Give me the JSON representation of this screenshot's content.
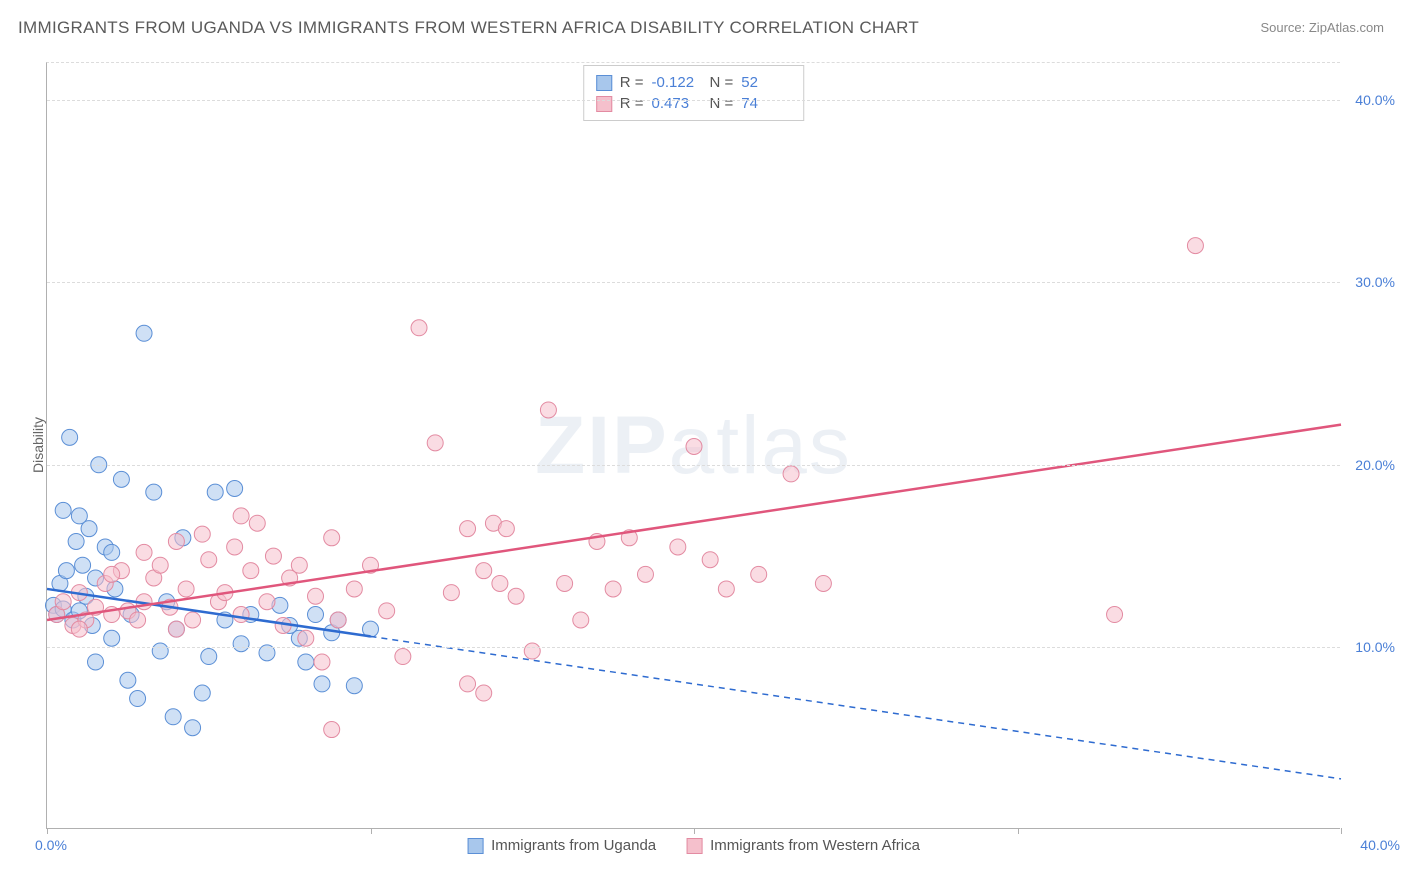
{
  "title": "IMMIGRANTS FROM UGANDA VS IMMIGRANTS FROM WESTERN AFRICA DISABILITY CORRELATION CHART",
  "source": "Source: ZipAtlas.com",
  "ylabel": "Disability",
  "watermark_bold": "ZIP",
  "watermark_rest": "atlas",
  "chart": {
    "type": "scatter",
    "xlim": [
      0,
      40
    ],
    "ylim": [
      0,
      42
    ],
    "x_axis_min_label": "0.0%",
    "x_axis_max_label": "40.0%",
    "y_ticks": [
      10,
      20,
      30,
      40
    ],
    "y_tick_labels": [
      "10.0%",
      "20.0%",
      "30.0%",
      "40.0%"
    ],
    "x_tick_positions": [
      0,
      10,
      20,
      30,
      40
    ],
    "grid_color": "#dcdcdc",
    "background_color": "#ffffff",
    "axis_label_color": "#4a7fd6",
    "marker_radius": 8,
    "marker_opacity": 0.55,
    "series": [
      {
        "name": "Immigrants from Uganda",
        "color_fill": "#a8c7ec",
        "color_stroke": "#5b8fd6",
        "R": "-0.122",
        "N": "52",
        "trend": {
          "x1": 0,
          "y1": 13.2,
          "x2": 10,
          "y2": 10.6,
          "color": "#2e6bd0",
          "width": 2.5,
          "dash_ext_x2": 40,
          "dash_ext_y2": 2.8
        },
        "points": [
          [
            0.2,
            12.3
          ],
          [
            0.3,
            11.8
          ],
          [
            0.4,
            13.5
          ],
          [
            0.5,
            12.1
          ],
          [
            0.6,
            14.2
          ],
          [
            0.7,
            21.5
          ],
          [
            0.8,
            11.5
          ],
          [
            0.9,
            15.8
          ],
          [
            1.0,
            17.2
          ],
          [
            1.1,
            14.5
          ],
          [
            1.2,
            12.8
          ],
          [
            1.3,
            16.5
          ],
          [
            1.4,
            11.2
          ],
          [
            1.5,
            9.2
          ],
          [
            1.6,
            20.0
          ],
          [
            1.8,
            15.5
          ],
          [
            2.0,
            10.5
          ],
          [
            2.1,
            13.2
          ],
          [
            2.3,
            19.2
          ],
          [
            2.5,
            8.2
          ],
          [
            2.6,
            11.8
          ],
          [
            2.8,
            7.2
          ],
          [
            3.0,
            27.2
          ],
          [
            3.3,
            18.5
          ],
          [
            3.5,
            9.8
          ],
          [
            3.7,
            12.5
          ],
          [
            3.9,
            6.2
          ],
          [
            4.0,
            11.0
          ],
          [
            4.2,
            16.0
          ],
          [
            4.5,
            5.6
          ],
          [
            4.8,
            7.5
          ],
          [
            5.0,
            9.5
          ],
          [
            5.2,
            18.5
          ],
          [
            5.5,
            11.5
          ],
          [
            5.8,
            18.7
          ],
          [
            6.0,
            10.2
          ],
          [
            6.3,
            11.8
          ],
          [
            6.8,
            9.7
          ],
          [
            7.2,
            12.3
          ],
          [
            7.5,
            11.2
          ],
          [
            7.8,
            10.5
          ],
          [
            8.0,
            9.2
          ],
          [
            8.3,
            11.8
          ],
          [
            8.5,
            8.0
          ],
          [
            8.8,
            10.8
          ],
          [
            9.0,
            11.5
          ],
          [
            9.5,
            7.9
          ],
          [
            10.0,
            11.0
          ],
          [
            0.5,
            17.5
          ],
          [
            1.0,
            12.0
          ],
          [
            1.5,
            13.8
          ],
          [
            2.0,
            15.2
          ]
        ]
      },
      {
        "name": "Immigrants from Western Africa",
        "color_fill": "#f5c0cc",
        "color_stroke": "#e38ba2",
        "R": "0.473",
        "N": "74",
        "trend": {
          "x1": 0,
          "y1": 11.5,
          "x2": 40,
          "y2": 22.2,
          "color": "#e0567c",
          "width": 2.5
        },
        "points": [
          [
            0.3,
            11.8
          ],
          [
            0.5,
            12.5
          ],
          [
            0.8,
            11.2
          ],
          [
            1.0,
            13.0
          ],
          [
            1.2,
            11.5
          ],
          [
            1.5,
            12.2
          ],
          [
            1.8,
            13.5
          ],
          [
            2.0,
            11.8
          ],
          [
            2.3,
            14.2
          ],
          [
            2.5,
            12.0
          ],
          [
            2.8,
            11.5
          ],
          [
            3.0,
            15.2
          ],
          [
            3.3,
            13.8
          ],
          [
            3.5,
            14.5
          ],
          [
            3.8,
            12.2
          ],
          [
            4.0,
            15.8
          ],
          [
            4.3,
            13.2
          ],
          [
            4.5,
            11.5
          ],
          [
            4.8,
            16.2
          ],
          [
            5.0,
            14.8
          ],
          [
            5.3,
            12.5
          ],
          [
            5.5,
            13.0
          ],
          [
            5.8,
            15.5
          ],
          [
            6.0,
            11.8
          ],
          [
            6.3,
            14.2
          ],
          [
            6.5,
            16.8
          ],
          [
            6.8,
            12.5
          ],
          [
            7.0,
            15.0
          ],
          [
            7.3,
            11.2
          ],
          [
            7.5,
            13.8
          ],
          [
            7.8,
            14.5
          ],
          [
            8.0,
            10.5
          ],
          [
            8.3,
            12.8
          ],
          [
            8.5,
            9.2
          ],
          [
            8.8,
            16.0
          ],
          [
            9.0,
            11.5
          ],
          [
            9.5,
            13.2
          ],
          [
            10.0,
            14.5
          ],
          [
            10.5,
            12.0
          ],
          [
            11.0,
            9.5
          ],
          [
            11.5,
            27.5
          ],
          [
            12.0,
            21.2
          ],
          [
            12.5,
            13.0
          ],
          [
            13.0,
            16.5
          ],
          [
            13.5,
            14.2
          ],
          [
            13.8,
            16.8
          ],
          [
            13.0,
            8.0
          ],
          [
            13.5,
            7.5
          ],
          [
            14.0,
            13.5
          ],
          [
            14.2,
            16.5
          ],
          [
            14.5,
            12.8
          ],
          [
            15.0,
            9.8
          ],
          [
            15.5,
            23.0
          ],
          [
            16.0,
            13.5
          ],
          [
            16.5,
            11.5
          ],
          [
            17.0,
            15.8
          ],
          [
            17.5,
            13.2
          ],
          [
            18.0,
            16.0
          ],
          [
            18.5,
            14.0
          ],
          [
            19.5,
            15.5
          ],
          [
            20.0,
            21.0
          ],
          [
            20.5,
            14.8
          ],
          [
            21.0,
            13.2
          ],
          [
            22.0,
            14.0
          ],
          [
            23.0,
            19.5
          ],
          [
            24.0,
            13.5
          ],
          [
            8.8,
            5.5
          ],
          [
            33.0,
            11.8
          ],
          [
            35.5,
            32.0
          ],
          [
            6.0,
            17.2
          ],
          [
            4.0,
            11.0
          ],
          [
            3.0,
            12.5
          ],
          [
            2.0,
            14.0
          ],
          [
            1.0,
            11.0
          ]
        ]
      }
    ]
  },
  "stat_legend_labels": {
    "R_prefix": "R = ",
    "N_prefix": "N = "
  }
}
